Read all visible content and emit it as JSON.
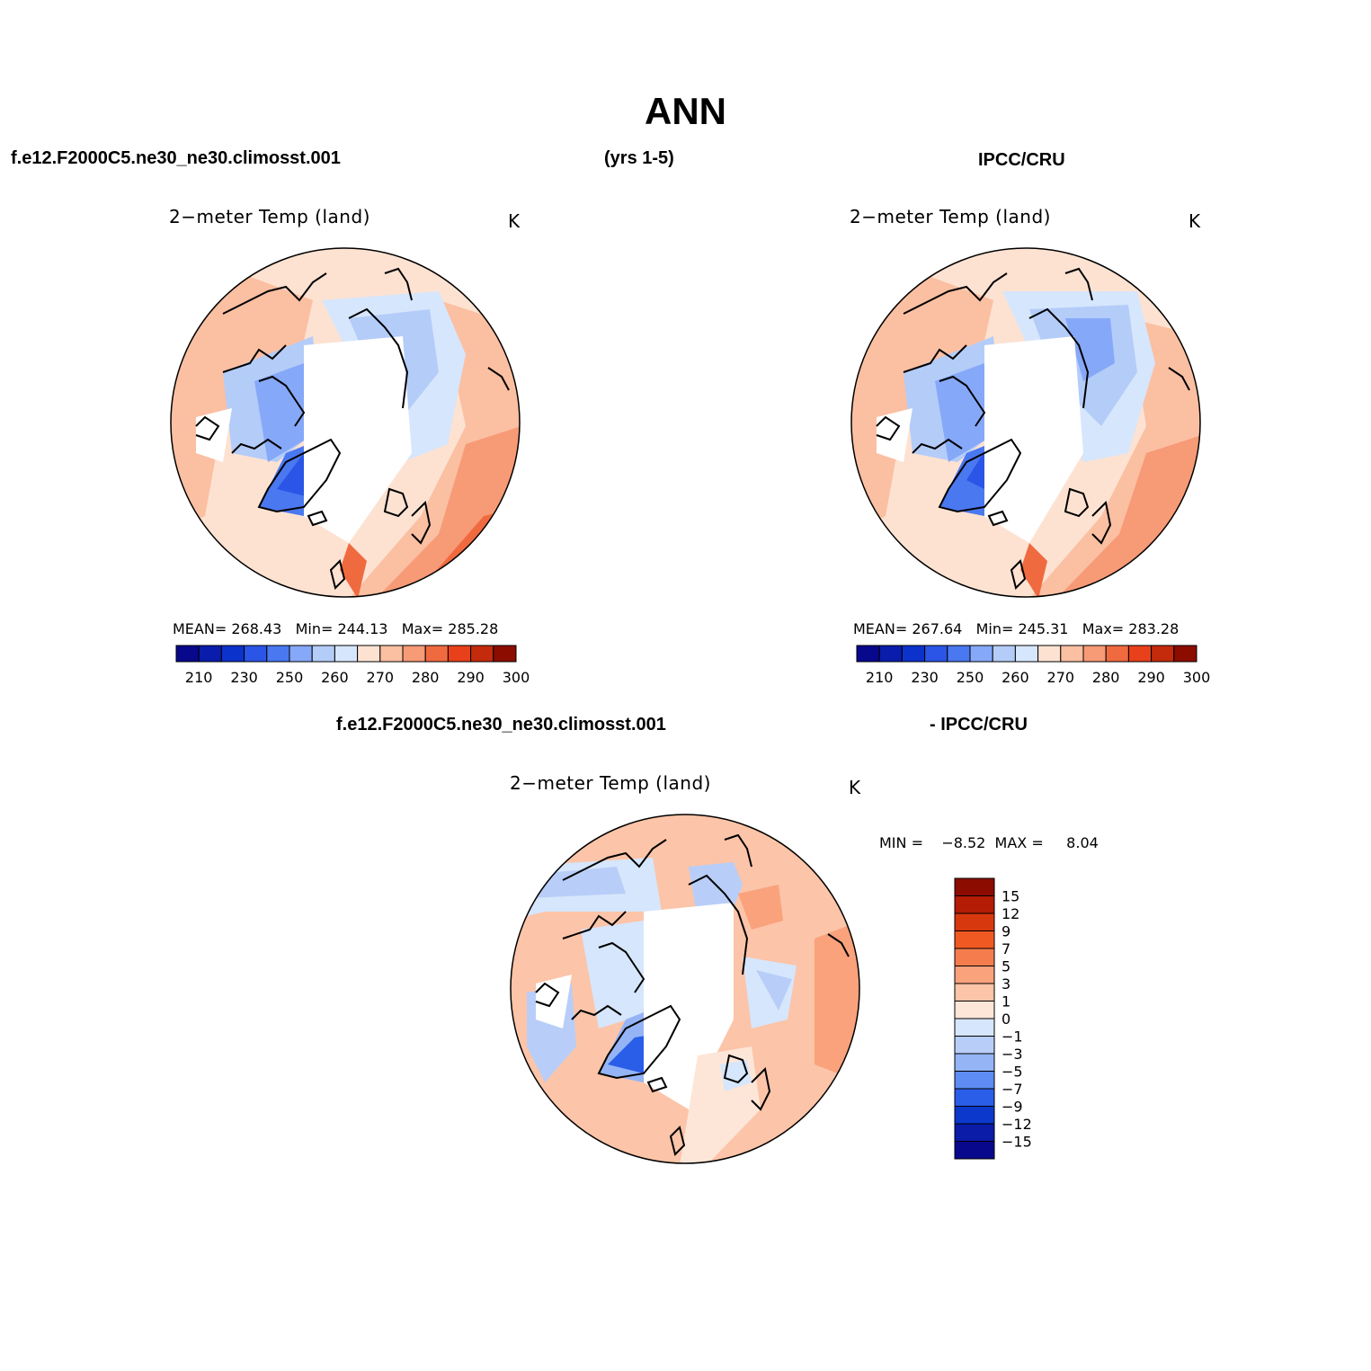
{
  "header": {
    "title": "ANN",
    "case_name": "f.e12.F2000C5.ne30_ne30.climosst.001",
    "years": "(yrs 1-5)",
    "obs_name": "IPCC/CRU",
    "diff_case": "f.e12.F2000C5.ne30_ne30.climosst.001",
    "diff_obs": "- IPCC/CRU"
  },
  "panels": [
    {
      "id": "model",
      "title": "2−meter Temp (land)",
      "units": "K",
      "stats": {
        "mean_label": "MEAN=",
        "mean": "268.43",
        "min_label": "Min=",
        "min": "244.13",
        "max_label": "Max=",
        "max": "285.28"
      }
    },
    {
      "id": "obs",
      "title": "2−meter Temp (land)",
      "units": "K",
      "stats": {
        "mean_label": "MEAN=",
        "mean": "267.64",
        "min_label": "Min=",
        "min": "245.31",
        "max_label": "Max=",
        "max": "283.28"
      }
    },
    {
      "id": "diff",
      "title": "2−meter Temp (land)",
      "units": "K",
      "stats": {
        "min_label": "MIN =",
        "min": "−8.52",
        "max_label": "MAX =",
        "max": "8.04"
      }
    }
  ],
  "abs_colorbar": {
    "colors": [
      "#08088c",
      "#0a1cac",
      "#0c32cc",
      "#2a55e6",
      "#4a78f0",
      "#86a8f8",
      "#b4ccf8",
      "#d6e6fc",
      "#fde2d2",
      "#fbbfa2",
      "#f79a76",
      "#f06a40",
      "#e8401a",
      "#c42a0c",
      "#8c0c00"
    ],
    "tick_labels": [
      "210",
      "230",
      "250",
      "260",
      "270",
      "280",
      "290",
      "300"
    ]
  },
  "diff_colorbar": {
    "colors": [
      "#8c0c00",
      "#b41c06",
      "#d8380e",
      "#f05a22",
      "#f57d4d",
      "#f9a27c",
      "#fcc4a8",
      "#fde6d8",
      "#d6e6fc",
      "#b8cef8",
      "#94b4f6",
      "#5d8cf2",
      "#2a5ee8",
      "#0c38cc",
      "#0a1ca8",
      "#08088c"
    ],
    "tick_labels": [
      "15",
      "12",
      "9",
      "7",
      "5",
      "3",
      "1",
      "0",
      "−1",
      "−3",
      "−5",
      "−7",
      "−9",
      "−12",
      "−15"
    ]
  }
}
